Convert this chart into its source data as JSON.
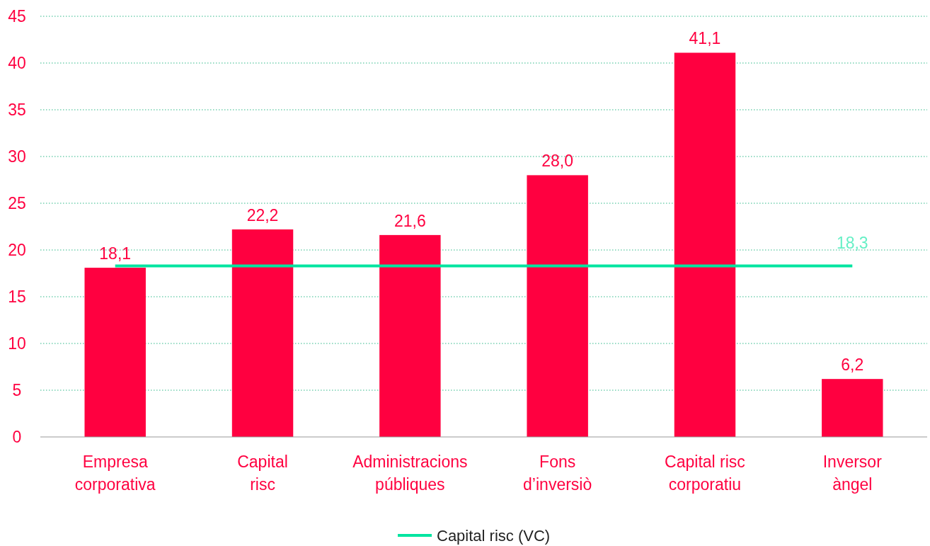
{
  "chart_data": {
    "type": "bar",
    "categories": [
      "Empresa corporativa",
      "Capital risc",
      "Administracions públiques",
      "Fons d’inversiò",
      "Capital risc corporatiu",
      "Inversor àngel"
    ],
    "series": [
      {
        "color": "#ff0040",
        "values": [
          18.1,
          22.2,
          21.6,
          28.0,
          41.1,
          6.2
        ],
        "value_labels": [
          "18,1",
          "22,2",
          "21,6",
          "28,0",
          "41,1",
          "6,2"
        ]
      },
      {
        "type": "line",
        "name": "Capital risc (VC)",
        "color": "#00e5a0",
        "values": [
          18.3,
          18.3,
          18.3,
          18.3,
          18.3,
          18.3
        ],
        "value_labels": [
          null,
          null,
          null,
          null,
          null,
          "18,3"
        ]
      }
    ],
    "ylim": [
      0,
      45
    ],
    "yticks": [
      0,
      5,
      10,
      15,
      20,
      25,
      30,
      35,
      40,
      45
    ],
    "grid": "y",
    "legend": "bottom",
    "marker": "none",
    "line_style": "solid"
  }
}
